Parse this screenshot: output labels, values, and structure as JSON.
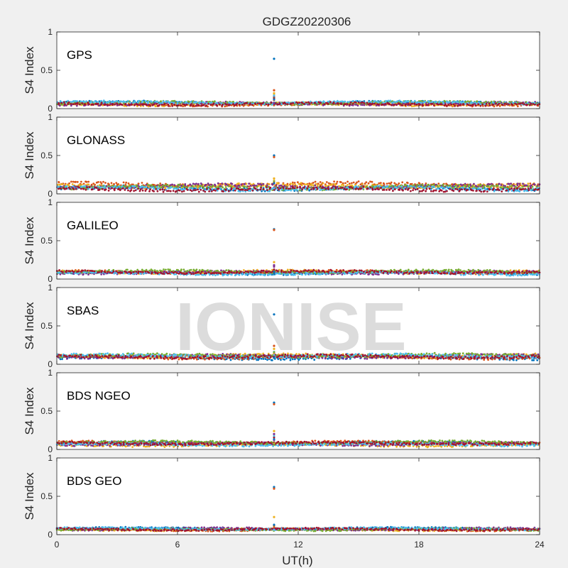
{
  "chart_data": {
    "type": "scatter",
    "title": "GDGZ20220306",
    "xlabel": "UT(h)",
    "ylabel": "S4 Index",
    "xlim": [
      0,
      24
    ],
    "ylim": [
      0,
      1
    ],
    "x_ticks": [
      "0",
      "6",
      "12",
      "18",
      "24"
    ],
    "y_ticks": [
      "0",
      "0.5",
      "1"
    ],
    "watermark": "IONISE",
    "series_colors": [
      "#0072bd",
      "#d95319",
      "#edb120",
      "#7e2f8e",
      "#77ac30",
      "#4dbeee",
      "#a2142f"
    ],
    "panels": [
      {
        "label": "GPS",
        "baseline": 0.07,
        "spread": 0.05,
        "spike_x": 10.8,
        "spike_values": [
          0.65,
          0.24,
          0.2,
          0.15
        ]
      },
      {
        "label": "GLONASS",
        "baseline": 0.09,
        "spread": 0.07,
        "spike_x": 10.8,
        "spike_values": [
          0.5,
          0.48,
          0.2
        ]
      },
      {
        "label": "GALILEO",
        "baseline": 0.08,
        "spread": 0.05,
        "spike_x": 10.8,
        "spike_values": [
          0.65,
          0.64,
          0.22,
          0.18
        ]
      },
      {
        "label": "SBAS",
        "baseline": 0.11,
        "spread": 0.06,
        "spike_x": 10.8,
        "spike_values": [
          0.65,
          0.24,
          0.2
        ]
      },
      {
        "label": "BDS NGEO",
        "baseline": 0.08,
        "spread": 0.05,
        "spike_x": 10.8,
        "spike_values": [
          0.61,
          0.59,
          0.24,
          0.2
        ]
      },
      {
        "label": "BDS GEO",
        "baseline": 0.08,
        "spread": 0.04,
        "spike_x": 10.8,
        "spike_values": [
          0.62,
          0.6,
          0.23
        ]
      }
    ]
  }
}
